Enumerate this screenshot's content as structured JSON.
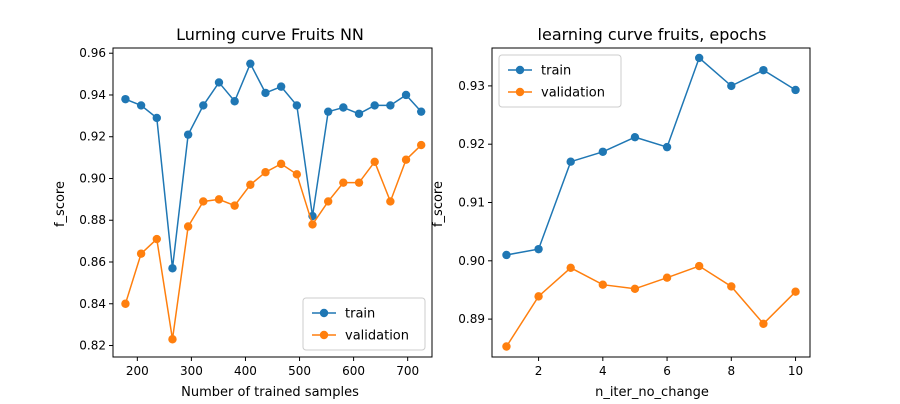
{
  "chart_data": [
    {
      "type": "line",
      "title": "Lurning curve Fruits NN",
      "xlabel": "Number of trained samples",
      "ylabel": "f_score",
      "xlim": [
        155,
        745
      ],
      "ylim": [
        0.8145,
        0.9625
      ],
      "xticks": [
        200,
        300,
        400,
        500,
        600,
        700
      ],
      "xtick_labels": [
        "200",
        "300",
        "400",
        "500",
        "600",
        "700"
      ],
      "yticks": [
        0.82,
        0.84,
        0.86,
        0.88,
        0.9,
        0.92,
        0.94,
        0.96
      ],
      "ytick_labels": [
        "0.82",
        "0.84",
        "0.86",
        "0.88",
        "0.90",
        "0.92",
        "0.94",
        "0.96"
      ],
      "legend_position": "lower-right",
      "grid": false,
      "x": [
        178,
        207,
        236,
        265,
        294,
        322,
        351,
        380,
        409,
        437,
        466,
        495,
        524,
        553,
        581,
        610,
        639,
        668,
        697,
        725
      ],
      "series": [
        {
          "name": "train",
          "color": "#1f77b4",
          "values": [
            0.938,
            0.935,
            0.929,
            0.857,
            0.921,
            0.935,
            0.946,
            0.937,
            0.955,
            0.941,
            0.944,
            0.935,
            0.882,
            0.932,
            0.934,
            0.931,
            0.935,
            0.935,
            0.94,
            0.932
          ]
        },
        {
          "name": "validation",
          "color": "#ff7f0e",
          "values": [
            0.84,
            0.864,
            0.871,
            0.823,
            0.877,
            0.889,
            0.89,
            0.887,
            0.897,
            0.903,
            0.907,
            0.902,
            0.878,
            0.889,
            0.898,
            0.898,
            0.908,
            0.889,
            0.909,
            0.916
          ]
        }
      ]
    },
    {
      "type": "line",
      "title": "learning curve fruits, epochs",
      "xlabel": "n_iter_no_change",
      "ylabel": "f_score",
      "xlim": [
        0.55,
        10.45
      ],
      "ylim": [
        0.8835,
        0.9365
      ],
      "xticks": [
        2,
        4,
        6,
        8,
        10
      ],
      "xtick_labels": [
        "2",
        "4",
        "6",
        "8",
        "10"
      ],
      "yticks": [
        0.89,
        0.9,
        0.91,
        0.92,
        0.93
      ],
      "ytick_labels": [
        "0.89",
        "0.90",
        "0.91",
        "0.92",
        "0.93"
      ],
      "legend_position": "upper-left",
      "grid": false,
      "x": [
        1,
        2,
        3,
        4,
        5,
        6,
        7,
        8,
        9,
        10
      ],
      "series": [
        {
          "name": "train",
          "color": "#1f77b4",
          "values": [
            0.901,
            0.902,
            0.917,
            0.9187,
            0.9212,
            0.9195,
            0.9348,
            0.93,
            0.9327,
            0.9293
          ]
        },
        {
          "name": "validation",
          "color": "#ff7f0e",
          "values": [
            0.8853,
            0.8939,
            0.8988,
            0.8959,
            0.8952,
            0.8971,
            0.8991,
            0.8956,
            0.8892,
            0.8947
          ]
        }
      ]
    }
  ]
}
